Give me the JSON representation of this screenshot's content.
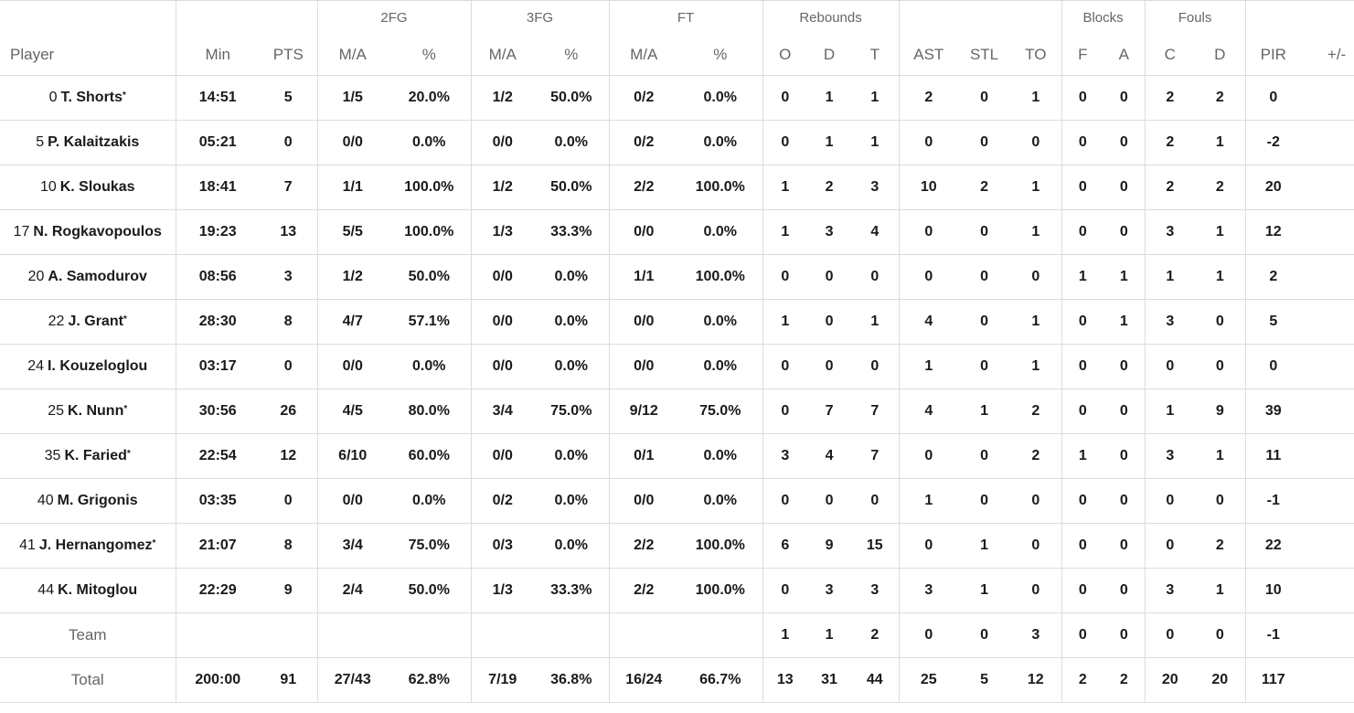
{
  "headers": {
    "groups": {
      "fg2": "2FG",
      "fg3": "3FG",
      "ft": "FT",
      "rebounds": "Rebounds",
      "blocks": "Blocks",
      "fouls": "Fouls"
    },
    "player": "Player",
    "min": "Min",
    "pts": "PTS",
    "fg2_ma": "M/A",
    "fg2_pct": "%",
    "fg3_ma": "M/A",
    "fg3_pct": "%",
    "ft_ma": "M/A",
    "ft_pct": "%",
    "reb_o": "O",
    "reb_d": "D",
    "reb_t": "T",
    "ast": "AST",
    "stl": "STL",
    "to": "TO",
    "blk_f": "F",
    "blk_a": "A",
    "foul_c": "C",
    "foul_d": "D",
    "pir": "PIR",
    "pm": "+/-"
  },
  "players": [
    {
      "num": "0",
      "name": "T. Shorts",
      "starter": "*",
      "min": "14:51",
      "pts": "5",
      "fg2": "1/5",
      "fg2p": "20.0%",
      "fg3": "1/2",
      "fg3p": "50.0%",
      "ft": "0/2",
      "ftp": "0.0%",
      "o": "0",
      "d": "1",
      "t": "1",
      "ast": "2",
      "stl": "0",
      "to": "1",
      "bf": "0",
      "ba": "0",
      "fc": "2",
      "fd": "2",
      "pir": "0",
      "pm": ""
    },
    {
      "num": "5",
      "name": "P. Kalaitzakis",
      "starter": "",
      "min": "05:21",
      "pts": "0",
      "fg2": "0/0",
      "fg2p": "0.0%",
      "fg3": "0/0",
      "fg3p": "0.0%",
      "ft": "0/2",
      "ftp": "0.0%",
      "o": "0",
      "d": "1",
      "t": "1",
      "ast": "0",
      "stl": "0",
      "to": "0",
      "bf": "0",
      "ba": "0",
      "fc": "2",
      "fd": "1",
      "pir": "-2",
      "pm": ""
    },
    {
      "num": "10",
      "name": "K. Sloukas",
      "starter": "",
      "min": "18:41",
      "pts": "7",
      "fg2": "1/1",
      "fg2p": "100.0%",
      "fg3": "1/2",
      "fg3p": "50.0%",
      "ft": "2/2",
      "ftp": "100.0%",
      "o": "1",
      "d": "2",
      "t": "3",
      "ast": "10",
      "stl": "2",
      "to": "1",
      "bf": "0",
      "ba": "0",
      "fc": "2",
      "fd": "2",
      "pir": "20",
      "pm": ""
    },
    {
      "num": "17",
      "name": "N. Rogkavopoulos",
      "starter": "",
      "min": "19:23",
      "pts": "13",
      "fg2": "5/5",
      "fg2p": "100.0%",
      "fg3": "1/3",
      "fg3p": "33.3%",
      "ft": "0/0",
      "ftp": "0.0%",
      "o": "1",
      "d": "3",
      "t": "4",
      "ast": "0",
      "stl": "0",
      "to": "1",
      "bf": "0",
      "ba": "0",
      "fc": "3",
      "fd": "1",
      "pir": "12",
      "pm": ""
    },
    {
      "num": "20",
      "name": "A. Samodurov",
      "starter": "",
      "min": "08:56",
      "pts": "3",
      "fg2": "1/2",
      "fg2p": "50.0%",
      "fg3": "0/0",
      "fg3p": "0.0%",
      "ft": "1/1",
      "ftp": "100.0%",
      "o": "0",
      "d": "0",
      "t": "0",
      "ast": "0",
      "stl": "0",
      "to": "0",
      "bf": "1",
      "ba": "1",
      "fc": "1",
      "fd": "1",
      "pir": "2",
      "pm": ""
    },
    {
      "num": "22",
      "name": "J. Grant",
      "starter": "*",
      "min": "28:30",
      "pts": "8",
      "fg2": "4/7",
      "fg2p": "57.1%",
      "fg3": "0/0",
      "fg3p": "0.0%",
      "ft": "0/0",
      "ftp": "0.0%",
      "o": "1",
      "d": "0",
      "t": "1",
      "ast": "4",
      "stl": "0",
      "to": "1",
      "bf": "0",
      "ba": "1",
      "fc": "3",
      "fd": "0",
      "pir": "5",
      "pm": ""
    },
    {
      "num": "24",
      "name": "I. Kouzeloglou",
      "starter": "",
      "min": "03:17",
      "pts": "0",
      "fg2": "0/0",
      "fg2p": "0.0%",
      "fg3": "0/0",
      "fg3p": "0.0%",
      "ft": "0/0",
      "ftp": "0.0%",
      "o": "0",
      "d": "0",
      "t": "0",
      "ast": "1",
      "stl": "0",
      "to": "1",
      "bf": "0",
      "ba": "0",
      "fc": "0",
      "fd": "0",
      "pir": "0",
      "pm": ""
    },
    {
      "num": "25",
      "name": "K. Nunn",
      "starter": "*",
      "min": "30:56",
      "pts": "26",
      "fg2": "4/5",
      "fg2p": "80.0%",
      "fg3": "3/4",
      "fg3p": "75.0%",
      "ft": "9/12",
      "ftp": "75.0%",
      "o": "0",
      "d": "7",
      "t": "7",
      "ast": "4",
      "stl": "1",
      "to": "2",
      "bf": "0",
      "ba": "0",
      "fc": "1",
      "fd": "9",
      "pir": "39",
      "pm": ""
    },
    {
      "num": "35",
      "name": "K. Faried",
      "starter": "*",
      "min": "22:54",
      "pts": "12",
      "fg2": "6/10",
      "fg2p": "60.0%",
      "fg3": "0/0",
      "fg3p": "0.0%",
      "ft": "0/1",
      "ftp": "0.0%",
      "o": "3",
      "d": "4",
      "t": "7",
      "ast": "0",
      "stl": "0",
      "to": "2",
      "bf": "1",
      "ba": "0",
      "fc": "3",
      "fd": "1",
      "pir": "11",
      "pm": ""
    },
    {
      "num": "40",
      "name": "M. Grigonis",
      "starter": "",
      "min": "03:35",
      "pts": "0",
      "fg2": "0/0",
      "fg2p": "0.0%",
      "fg3": "0/2",
      "fg3p": "0.0%",
      "ft": "0/0",
      "ftp": "0.0%",
      "o": "0",
      "d": "0",
      "t": "0",
      "ast": "1",
      "stl": "0",
      "to": "0",
      "bf": "0",
      "ba": "0",
      "fc": "0",
      "fd": "0",
      "pir": "-1",
      "pm": ""
    },
    {
      "num": "41",
      "name": "J. Hernangomez",
      "starter": "*",
      "min": "21:07",
      "pts": "8",
      "fg2": "3/4",
      "fg2p": "75.0%",
      "fg3": "0/3",
      "fg3p": "0.0%",
      "ft": "2/2",
      "ftp": "100.0%",
      "o": "6",
      "d": "9",
      "t": "15",
      "ast": "0",
      "stl": "1",
      "to": "0",
      "bf": "0",
      "ba": "0",
      "fc": "0",
      "fd": "2",
      "pir": "22",
      "pm": ""
    },
    {
      "num": "44",
      "name": "K. Mitoglou",
      "starter": "",
      "min": "22:29",
      "pts": "9",
      "fg2": "2/4",
      "fg2p": "50.0%",
      "fg3": "1/3",
      "fg3p": "33.3%",
      "ft": "2/2",
      "ftp": "100.0%",
      "o": "0",
      "d": "3",
      "t": "3",
      "ast": "3",
      "stl": "1",
      "to": "0",
      "bf": "0",
      "ba": "0",
      "fc": "3",
      "fd": "1",
      "pir": "10",
      "pm": ""
    }
  ],
  "team": {
    "label": "Team",
    "min": "",
    "pts": "",
    "fg2": "",
    "fg2p": "",
    "fg3": "",
    "fg3p": "",
    "ft": "",
    "ftp": "",
    "o": "1",
    "d": "1",
    "t": "2",
    "ast": "0",
    "stl": "0",
    "to": "3",
    "bf": "0",
    "ba": "0",
    "fc": "0",
    "fd": "0",
    "pir": "-1",
    "pm": ""
  },
  "total": {
    "label": "Total",
    "min": "200:00",
    "pts": "91",
    "fg2": "27/43",
    "fg2p": "62.8%",
    "fg3": "7/19",
    "fg3p": "36.8%",
    "ft": "16/24",
    "ftp": "66.7%",
    "o": "13",
    "d": "31",
    "t": "44",
    "ast": "25",
    "stl": "5",
    "to": "12",
    "bf": "2",
    "ba": "2",
    "fc": "20",
    "fd": "20",
    "pir": "117",
    "pm": ""
  }
}
